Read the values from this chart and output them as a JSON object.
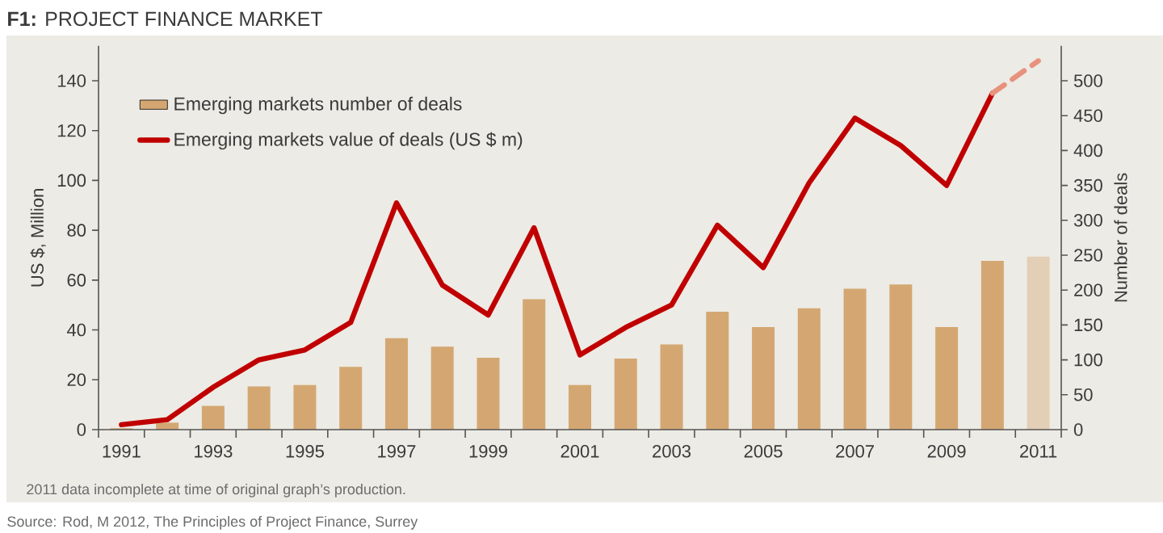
{
  "chart_data": {
    "type": "bar",
    "title": "**F1:** PROJECT FINANCE MARKET",
    "categories": [
      "1991",
      null,
      "1993",
      null,
      "1995",
      null,
      "1997",
      null,
      "1999",
      null,
      "2001",
      null,
      "2003",
      null,
      "2005",
      null,
      "2007",
      null,
      "2009",
      null,
      "2011"
    ],
    "ylabel": "US $, Million",
    "y2label": "Number of deals",
    "series": [
      {
        "name": "Emerging markets number of deals",
        "axis": "y2",
        "color": "#d4a772",
        "colors": [
          "#d4a772",
          "#d4a772",
          "#d4a772",
          "#d4a772",
          "#d4a772",
          "#d4a772",
          "#d4a772",
          "#d4a772",
          "#d4a772",
          "#d4a772",
          "#d4a772",
          "#d4a772",
          "#d4a772",
          "#d4a772",
          "#d4a772",
          "#d4a772",
          "#d4a772",
          "#d4a772",
          "#d4a772",
          "#d4a772",
          "#e3cfb6"
        ],
        "values": [
          2,
          10,
          34,
          62,
          64,
          90,
          131,
          119,
          103,
          187,
          64,
          102,
          122,
          169,
          147,
          174,
          202,
          208,
          147,
          242,
          248
        ]
      },
      {
        "name": "Emerging markets value of deals (US $ m)",
        "type": "line",
        "color": "#c00000",
        "values": [
          2,
          4,
          17,
          28,
          32,
          43,
          91,
          58,
          46,
          81,
          30,
          41,
          50,
          82,
          65,
          99,
          125,
          114,
          98,
          135,
          null
        ]
      },
      {
        "type": "line",
        "color": "#e8917c",
        "line_style": "dashed",
        "values": [
          null,
          null,
          null,
          null,
          null,
          null,
          null,
          null,
          null,
          null,
          null,
          null,
          null,
          null,
          null,
          null,
          null,
          null,
          null,
          135,
          148
        ]
      }
    ],
    "ylim": [
      0,
      154
    ],
    "yticks": [
      0,
      20,
      40,
      60,
      80,
      100,
      120,
      140
    ],
    "y2lim": [
      0,
      550
    ],
    "y2ticks": [
      0,
      50,
      100,
      150,
      200,
      250,
      300,
      350,
      400,
      450,
      500
    ],
    "legend": "top left",
    "annotations": [
      "2011 data incomplete at time of original graph’s production.",
      "Source: Rod, M 2012, The Principles of Project Finance, Surrey"
    ]
  }
}
